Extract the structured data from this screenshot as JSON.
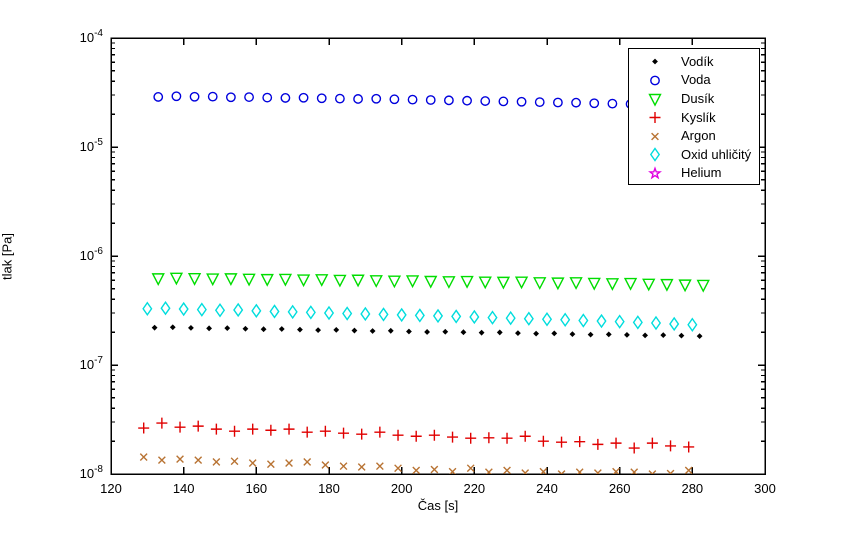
{
  "figure": {
    "background": "#ffffff",
    "axis_color": "#000000"
  },
  "chart_data": {
    "type": "scatter",
    "title": "",
    "xlabel": "Čas [s]",
    "ylabel": "tlak [Pa]",
    "grid": false,
    "legend_position": "top-right",
    "x_axis": {
      "min": 120,
      "max": 300,
      "ticks": [
        120,
        140,
        160,
        180,
        200,
        220,
        240,
        260,
        280,
        300
      ]
    },
    "y_axis": {
      "scale": "log",
      "min": 1e-08,
      "max": 0.0001,
      "tick_labels": [
        "10^-4",
        "10^-5",
        "10^-6",
        "10^-7",
        "10^-8"
      ],
      "minor_ticks": true
    },
    "series": [
      {
        "name": "Vodík",
        "marker": "point",
        "color": "#000000",
        "x": [
          132,
          137,
          142,
          147,
          152,
          157,
          162,
          167,
          172,
          177,
          182,
          187,
          192,
          197,
          202,
          207,
          212,
          217,
          222,
          227,
          232,
          237,
          242,
          247,
          252,
          257,
          262,
          267,
          272,
          277,
          282
        ],
        "y": [
          2.2e-07,
          2.22e-07,
          2.19e-07,
          2.17e-07,
          2.18e-07,
          2.15e-07,
          2.13e-07,
          2.14e-07,
          2.11e-07,
          2.09e-07,
          2.1e-07,
          2.07e-07,
          2.05e-07,
          2.06e-07,
          2.03e-07,
          2.01e-07,
          2.02e-07,
          2e-07,
          1.98e-07,
          1.99e-07,
          1.96e-07,
          1.94e-07,
          1.95e-07,
          1.92e-07,
          1.9e-07,
          1.91e-07,
          1.89e-07,
          1.87e-07,
          1.88e-07,
          1.86e-07,
          1.84e-07
        ]
      },
      {
        "name": "Voda",
        "marker": "circle",
        "color": "#0000dd",
        "x": [
          133,
          138,
          143,
          148,
          153,
          158,
          163,
          168,
          173,
          178,
          183,
          188,
          193,
          198,
          203,
          208,
          213,
          218,
          223,
          228,
          233,
          238,
          243,
          248,
          253,
          258,
          263,
          268,
          273,
          278,
          283
        ],
        "y": [
          2.88e-05,
          2.92e-05,
          2.89e-05,
          2.9e-05,
          2.86e-05,
          2.87e-05,
          2.84e-05,
          2.82e-05,
          2.83e-05,
          2.8e-05,
          2.78e-05,
          2.76e-05,
          2.77e-05,
          2.74e-05,
          2.72e-05,
          2.7e-05,
          2.68e-05,
          2.66e-05,
          2.64e-05,
          2.62e-05,
          2.6e-05,
          2.58e-05,
          2.56e-05,
          2.55e-05,
          2.52e-05,
          2.5e-05,
          2.48e-05,
          2.46e-05,
          2.44e-05,
          2.42e-05,
          2.4e-05
        ]
      },
      {
        "name": "Dusík",
        "marker": "triangle-down",
        "color": "#00dd00",
        "x": [
          133,
          138,
          143,
          148,
          153,
          158,
          163,
          168,
          173,
          178,
          183,
          188,
          193,
          198,
          203,
          208,
          213,
          218,
          223,
          228,
          233,
          238,
          243,
          248,
          253,
          258,
          263,
          268,
          273,
          278,
          283
        ],
        "y": [
          6.3e-07,
          6.38e-07,
          6.32e-07,
          6.28e-07,
          6.3e-07,
          6.24e-07,
          6.2e-07,
          6.22e-07,
          6.15e-07,
          6.18e-07,
          6.1e-07,
          6.12e-07,
          6.05e-07,
          6e-07,
          6.03e-07,
          5.96e-07,
          5.92e-07,
          5.95e-07,
          5.88e-07,
          5.85e-07,
          5.88e-07,
          5.8e-07,
          5.76e-07,
          5.8e-07,
          5.72e-07,
          5.68e-07,
          5.7e-07,
          5.62e-07,
          5.58e-07,
          5.52e-07,
          5.48e-07
        ]
      },
      {
        "name": "Kyslík",
        "marker": "plus",
        "color": "#e00000",
        "x": [
          129,
          134,
          139,
          144,
          149,
          154,
          159,
          164,
          169,
          174,
          179,
          184,
          189,
          194,
          199,
          204,
          209,
          214,
          219,
          224,
          229,
          234,
          239,
          244,
          249,
          254,
          259,
          264,
          269,
          274,
          279
        ],
        "y": [
          2.64e-08,
          2.93e-08,
          2.69e-08,
          2.75e-08,
          2.58e-08,
          2.47e-08,
          2.58e-08,
          2.52e-08,
          2.58e-08,
          2.42e-08,
          2.47e-08,
          2.37e-08,
          2.32e-08,
          2.42e-08,
          2.27e-08,
          2.22e-08,
          2.27e-08,
          2.18e-08,
          2.13e-08,
          2.15e-08,
          2.13e-08,
          2.22e-08,
          2e-08,
          1.96e-08,
          1.98e-08,
          1.87e-08,
          1.92e-08,
          1.73e-08,
          1.92e-08,
          1.81e-08,
          1.77e-08
        ]
      },
      {
        "name": "Argon",
        "marker": "x",
        "color": "#b87333",
        "x": [
          129,
          134,
          139,
          144,
          149,
          154,
          159,
          164,
          169,
          174,
          179,
          184,
          189,
          194,
          199,
          204,
          209,
          214,
          219,
          224,
          229,
          234,
          239,
          244,
          249,
          254,
          259,
          264,
          269,
          274,
          279
        ],
        "y": [
          1.43e-08,
          1.34e-08,
          1.37e-08,
          1.34e-08,
          1.29e-08,
          1.31e-08,
          1.26e-08,
          1.23e-08,
          1.26e-08,
          1.29e-08,
          1.21e-08,
          1.18e-08,
          1.16e-08,
          1.18e-08,
          1.13e-08,
          1.08e-08,
          1.1e-08,
          1.05e-08,
          1.13e-08,
          1.04e-08,
          1.08e-08,
          1.02e-08,
          1.05e-08,
          1e-08,
          1.04e-08,
          1.02e-08,
          1.05e-08,
          1.04e-08,
          1e-08,
          1.01e-08,
          1.08e-08
        ]
      },
      {
        "name": "Oxid uhličitý",
        "marker": "diamond",
        "color": "#00dddd",
        "x": [
          130,
          135,
          140,
          145,
          150,
          155,
          160,
          165,
          170,
          175,
          180,
          185,
          190,
          195,
          200,
          205,
          210,
          215,
          220,
          225,
          230,
          235,
          240,
          245,
          250,
          255,
          260,
          265,
          270,
          275,
          280
        ],
        "y": [
          3.28e-07,
          3.32e-07,
          3.26e-07,
          3.22e-07,
          3.18e-07,
          3.2e-07,
          3.14e-07,
          3.1e-07,
          3.07e-07,
          3.04e-07,
          3e-07,
          2.97e-07,
          2.94e-07,
          2.91e-07,
          2.88e-07,
          2.85e-07,
          2.82e-07,
          2.79e-07,
          2.76e-07,
          2.72e-07,
          2.69e-07,
          2.66e-07,
          2.63e-07,
          2.6e-07,
          2.56e-07,
          2.53e-07,
          2.5e-07,
          2.46e-07,
          2.43e-07,
          2.38e-07,
          2.34e-07
        ]
      },
      {
        "name": "Helium",
        "marker": "pentagram",
        "color": "#e000e0",
        "x": [],
        "y": []
      }
    ]
  }
}
